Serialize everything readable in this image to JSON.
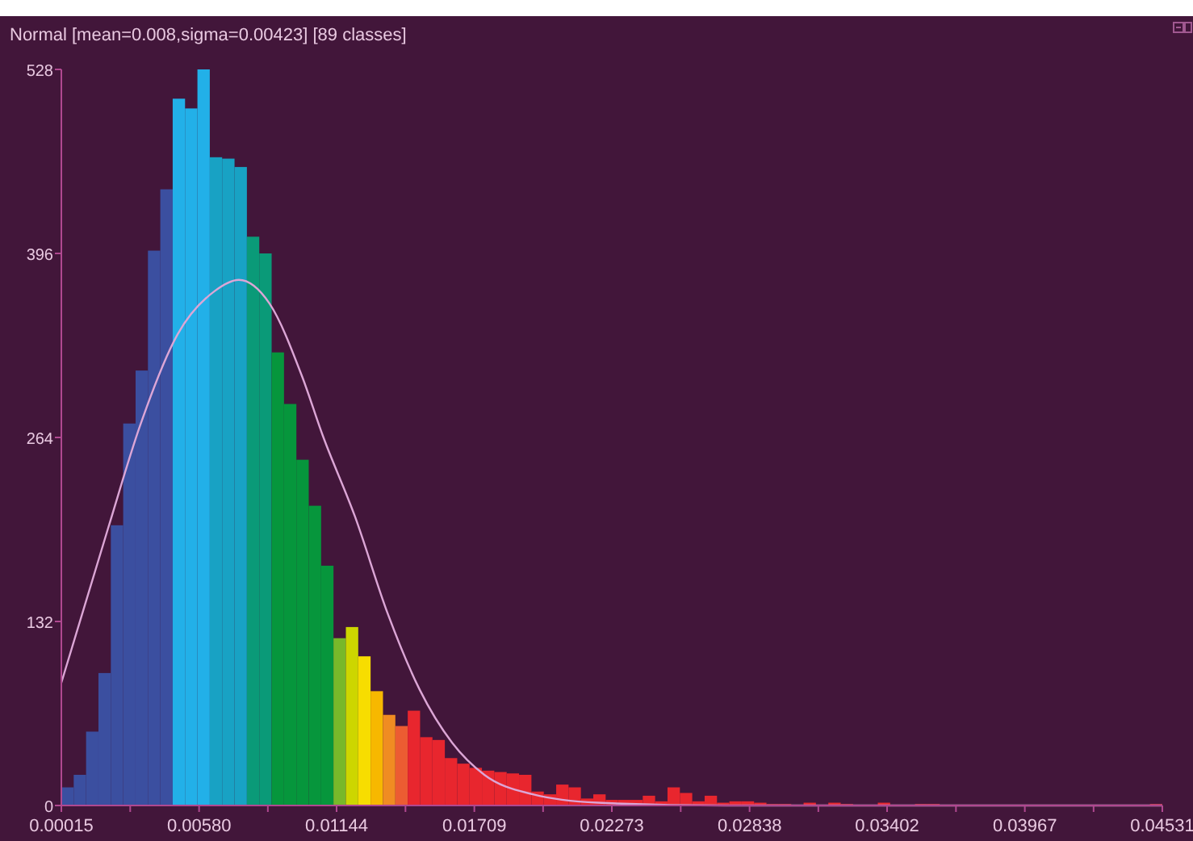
{
  "chart_data": {
    "type": "histogram",
    "title": "Normal [mean=0.008,sigma=0.00423] [89 classes]",
    "bins": [
      0.00015,
      0.000657,
      0.001165,
      0.001672,
      0.00218,
      0.002687,
      0.003195,
      0.003702,
      0.004209,
      0.004717,
      0.005224,
      0.005732,
      0.006239,
      0.006746,
      0.007254,
      0.007761,
      0.008269,
      0.008776,
      0.009283,
      0.009791,
      0.010298,
      0.010806,
      0.011313,
      0.011821,
      0.012328,
      0.012835,
      0.013343,
      0.01385,
      0.014358,
      0.014865,
      0.015372,
      0.01588,
      0.016387,
      0.016895,
      0.017402,
      0.01791,
      0.018417,
      0.018924,
      0.019432,
      0.019939,
      0.020447,
      0.020954,
      0.021461,
      0.021969,
      0.022476,
      0.022984,
      0.023491,
      0.023999,
      0.024506,
      0.025013,
      0.025521,
      0.026028,
      0.026536,
      0.027043,
      0.02755,
      0.028058,
      0.028565,
      0.029073,
      0.02958,
      0.030088,
      0.030595,
      0.031102,
      0.03161,
      0.032117,
      0.032625,
      0.033132,
      0.033639,
      0.034147,
      0.034654,
      0.035162,
      0.035669,
      0.036177,
      0.036684,
      0.037191,
      0.037699,
      0.038206,
      0.038714,
      0.039221,
      0.039728,
      0.040236,
      0.040743,
      0.041251,
      0.041758,
      0.042266,
      0.042773,
      0.04328,
      0.043788,
      0.044295,
      0.044803,
      0.04531
    ],
    "values": [
      13,
      22,
      53,
      95,
      201,
      274,
      312,
      398,
      442,
      507,
      500,
      528,
      465,
      464,
      458,
      408,
      396,
      325,
      288,
      248,
      215,
      172,
      120,
      128,
      107,
      82,
      65,
      57,
      68,
      49,
      47,
      34,
      30,
      27,
      25,
      24,
      23,
      22,
      10,
      8,
      15,
      13,
      5,
      8,
      4,
      4,
      4,
      7,
      3,
      13,
      9,
      3,
      7,
      2,
      3,
      3,
      2,
      1,
      1,
      0,
      2,
      0,
      2,
      1,
      0,
      0,
      2,
      0,
      0,
      1,
      1,
      0,
      0,
      0,
      0,
      0,
      0,
      0,
      0,
      0,
      0,
      0,
      0,
      0,
      0,
      0,
      0,
      0,
      1
    ],
    "colors": [
      "#3b4fa0",
      "#3b4fa0",
      "#3b4fa0",
      "#3b4fa0",
      "#3b4fa0",
      "#3b4fa0",
      "#3b4fa0",
      "#3b4fa0",
      "#3b4fa0",
      "#22b0e8",
      "#22b0e8",
      "#22b0e8",
      "#18a2c4",
      "#18a2c4",
      "#18a2c4",
      "#0a9a78",
      "#0a9a78",
      "#06963c",
      "#06963c",
      "#06963c",
      "#06963c",
      "#06963c",
      "#78b82a",
      "#cdd600",
      "#f7dd00",
      "#f7b800",
      "#f08c22",
      "#ec5c32",
      "#e8262e",
      "#e8262e",
      "#e8262e",
      "#e8262e",
      "#e8262e",
      "#e8262e",
      "#e8262e",
      "#e8262e",
      "#e8262e",
      "#e8262e",
      "#e8262e",
      "#e8262e",
      "#e8262e",
      "#e8262e",
      "#e8262e",
      "#e8262e",
      "#e8262e",
      "#e8262e",
      "#e8262e",
      "#e8262e",
      "#e8262e",
      "#e8262e",
      "#e8262e",
      "#e8262e",
      "#e8262e",
      "#e8262e",
      "#e8262e",
      "#e8262e",
      "#e8262e",
      "#e8262e",
      "#e8262e",
      "#e8262e",
      "#e8262e",
      "#e8262e",
      "#e8262e",
      "#e8262e",
      "#e8262e",
      "#e8262e",
      "#e8262e",
      "#e8262e",
      "#e8262e",
      "#e8262e",
      "#e8262e",
      "#e8262e",
      "#e8262e",
      "#e8262e",
      "#e8262e",
      "#e8262e",
      "#e8262e",
      "#e8262e",
      "#e8262e",
      "#e8262e",
      "#e8262e",
      "#e8262e",
      "#e8262e",
      "#e8262e",
      "#e8262e",
      "#e8262e",
      "#e8262e",
      "#e8262e",
      "#e8262e"
    ],
    "series": [
      {
        "type": "line",
        "color": "#dca6d6",
        "x": [
          0.00015,
          0.00207,
          0.00339,
          0.00492,
          0.00644,
          0.00743,
          0.00869,
          0.01002,
          0.01088,
          0.0122,
          0.01353,
          0.01485,
          0.01618,
          0.0175,
          0.01949,
          0.02214,
          0.02743,
          0.04531
        ],
        "values": [
          88,
          199,
          273,
          338,
          369,
          377,
          360,
          308,
          265,
          207,
          138,
          83,
          45,
          22,
          8,
          2,
          0,
          0
        ]
      }
    ],
    "xlim": [
      0.00015,
      0.04531
    ],
    "ylim": [
      0,
      528
    ],
    "xticks": [
      0.00015,
      {
        "value": 0.002975,
        "label": null
      },
      {
        "value": 0.0058,
        "label": "0.00580"
      },
      {
        "value": 0.00862,
        "label": null
      },
      0.01144,
      {
        "value": 0.014265,
        "label": null
      },
      0.01709,
      {
        "value": 0.01991,
        "label": null
      },
      0.02273,
      {
        "value": 0.025555,
        "label": null
      },
      0.02838,
      {
        "value": 0.0312,
        "label": null
      },
      0.03402,
      {
        "value": 0.036845,
        "label": null
      },
      0.03967,
      {
        "value": 0.04249,
        "label": null
      },
      0.04531
    ],
    "yticks": [
      0,
      132,
      264,
      396,
      528
    ]
  }
}
